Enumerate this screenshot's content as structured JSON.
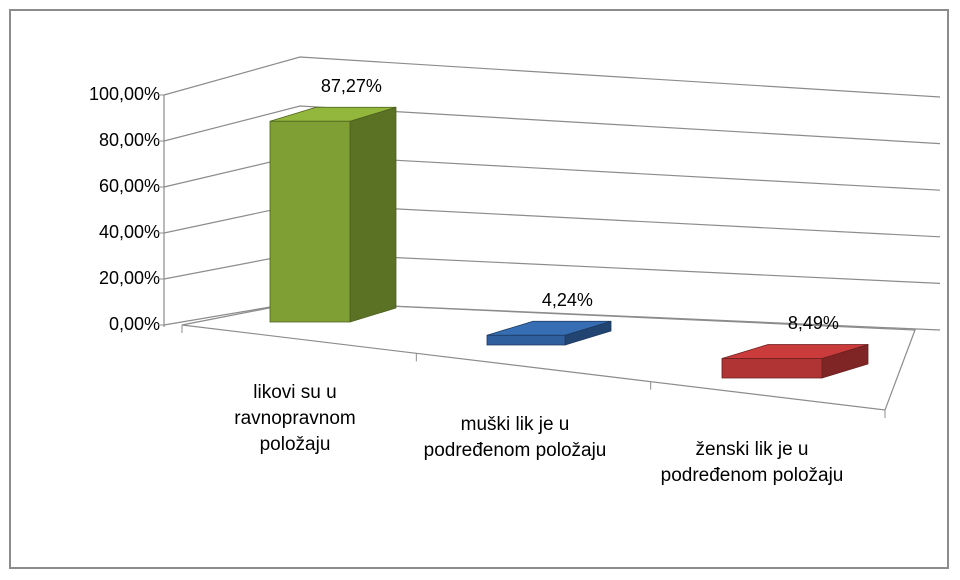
{
  "chart_data": {
    "type": "bar3d",
    "categories": [
      "likovi su u ravnopravnom položaju",
      "muški lik je u podređenom položaju",
      "ženski lik je u podređenom položaju"
    ],
    "values": [
      87.27,
      4.24,
      8.49
    ],
    "value_labels": [
      "87,27%",
      "4,24%",
      "8,49%"
    ],
    "colors": [
      "#7f9f34",
      "#2f5f9c",
      "#b03434"
    ],
    "ylim": [
      0,
      100
    ],
    "yticks": [
      {
        "value": 0,
        "label": "0,00%"
      },
      {
        "value": 20,
        "label": "20,00%"
      },
      {
        "value": 40,
        "label": "40,00%"
      },
      {
        "value": 60,
        "label": "60,00%"
      },
      {
        "value": 80,
        "label": "80,00%"
      },
      {
        "value": 100,
        "label": "100,00%"
      }
    ],
    "grid": true
  }
}
